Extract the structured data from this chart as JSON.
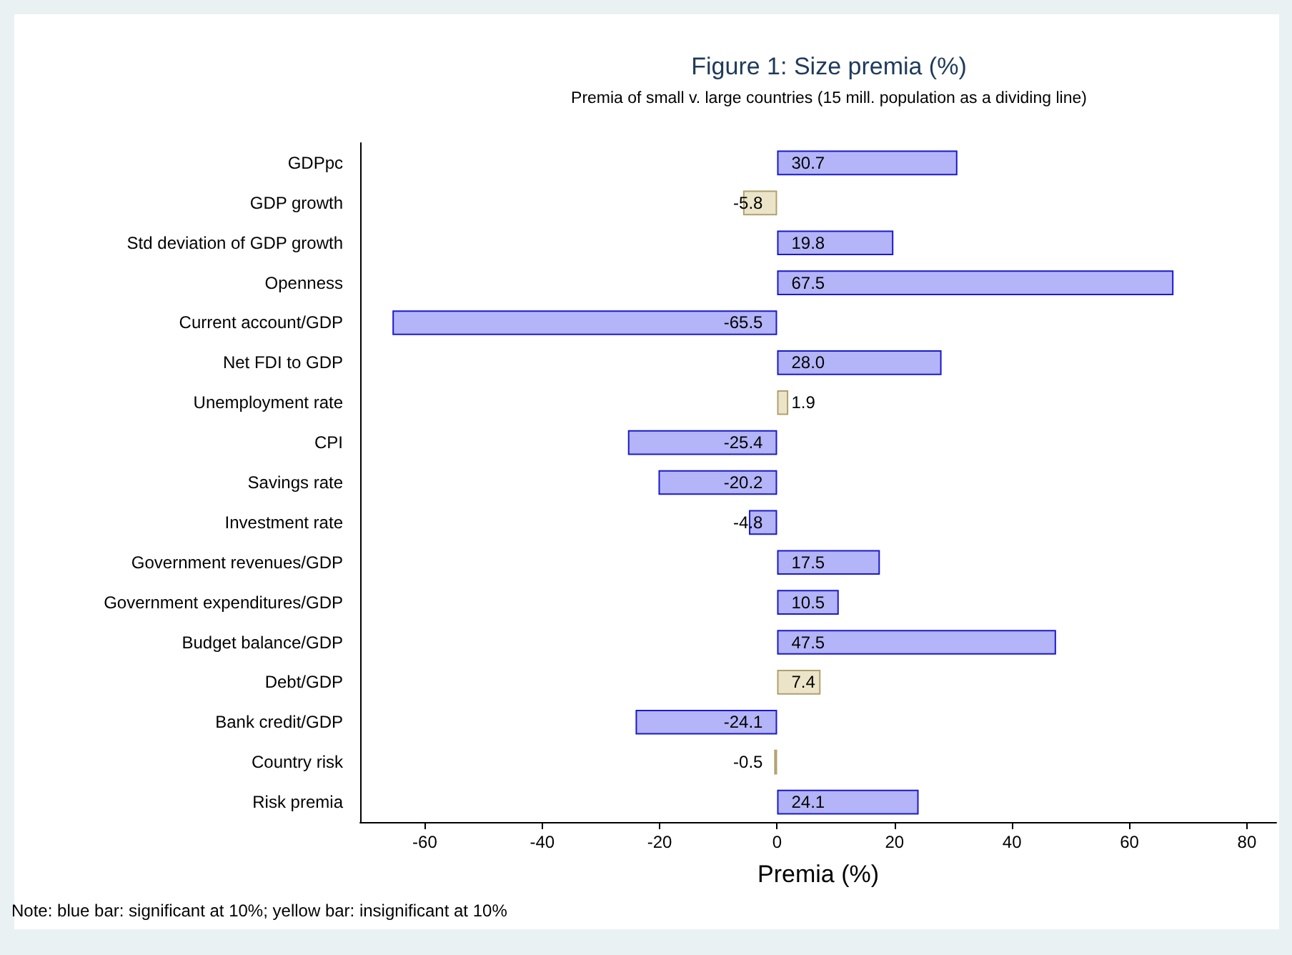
{
  "chart_data": {
    "type": "bar",
    "orientation": "horizontal",
    "title": "Figure 1: Size premia (%)",
    "subtitle": "Premia of small v. large countries (15 mill. population as a dividing line)",
    "xlabel": "Premia (%)",
    "categories": [
      "GDPpc",
      "GDP growth",
      "Std deviation of GDP growth",
      "Openness",
      "Current account/GDP",
      "Net FDI to GDP",
      "Unemployment rate",
      "CPI",
      "Savings rate",
      "Investment rate",
      "Government revenues/GDP",
      "Government expenditures/GDP",
      "Budget balance/GDP",
      "Debt/GDP",
      "Bank credit/GDP",
      "Country risk",
      "Risk premia"
    ],
    "values": [
      30.7,
      -5.8,
      19.8,
      67.5,
      -65.5,
      28.0,
      1.9,
      -25.4,
      -20.2,
      -4.8,
      17.5,
      10.5,
      47.5,
      7.4,
      -24.1,
      -0.5,
      24.1
    ],
    "value_labels": [
      "30.7",
      "-5.8",
      "19.8",
      "67.5",
      "-65.5",
      "28.0",
      "1.9",
      "-25.4",
      "-20.2",
      "-4.8",
      "17.5",
      "10.5",
      "47.5",
      "7.4",
      "-24.1",
      "-0.5",
      "24.1"
    ],
    "colors": [
      "#b4b4f8",
      "#ebe4c8",
      "#b4b4f8",
      "#b4b4f8",
      "#b4b4f8",
      "#b4b4f8",
      "#ebe4c8",
      "#b4b4f8",
      "#b4b4f8",
      "#b4b4f8",
      "#b4b4f8",
      "#b4b4f8",
      "#b4b4f8",
      "#ebe4c8",
      "#b4b4f8",
      "#ebe4c8",
      "#b4b4f8"
    ],
    "xlim": [
      -71,
      85
    ],
    "xticks": [
      -60,
      -40,
      -20,
      0,
      20,
      40,
      60,
      80
    ],
    "grid": false,
    "annotations": [
      "Note:  blue bar: significant at 10%; yellow bar: insignificant at 10%"
    ]
  }
}
